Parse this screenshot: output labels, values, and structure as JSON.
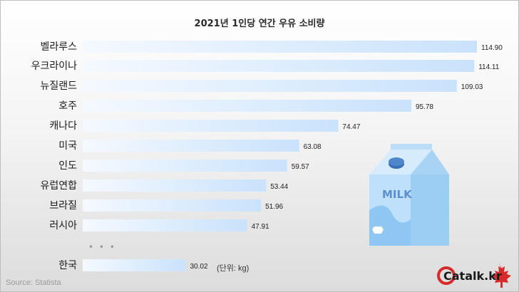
{
  "chart_data": {
    "type": "bar",
    "orientation": "horizontal",
    "title": "2021년 1인당 연간 우유 소비량",
    "categories": [
      "벨라루스",
      "우크라이나",
      "뉴질랜드",
      "호주",
      "캐나다",
      "미국",
      "인도",
      "유럽연합",
      "브라질",
      "러시아",
      "한국"
    ],
    "values": [
      114.9,
      114.11,
      109.03,
      95.78,
      74.47,
      63.08,
      59.57,
      53.44,
      51.96,
      47.91,
      30.02
    ],
    "value_labels": [
      "114.90",
      "114.11",
      "109.03",
      "95.78",
      "74.47",
      "63.08",
      "59.57",
      "53.44",
      "51.96",
      "47.91",
      "30.02"
    ],
    "unit_note": "(단위: kg)",
    "gap_marker": "• • •",
    "grid": false,
    "legend": "none",
    "bar_gradient": [
      "#f5f9ff",
      "#c9e2fb"
    ]
  },
  "source": "Source: Statista",
  "logo_text": "Catalk.kr",
  "milk_carton_label": "MILK",
  "colors": {
    "carton_light": "#bfe0fb",
    "carton_dark": "#8ec8f2",
    "cap": "#3b6fb6",
    "maple": "#d62b2b"
  }
}
